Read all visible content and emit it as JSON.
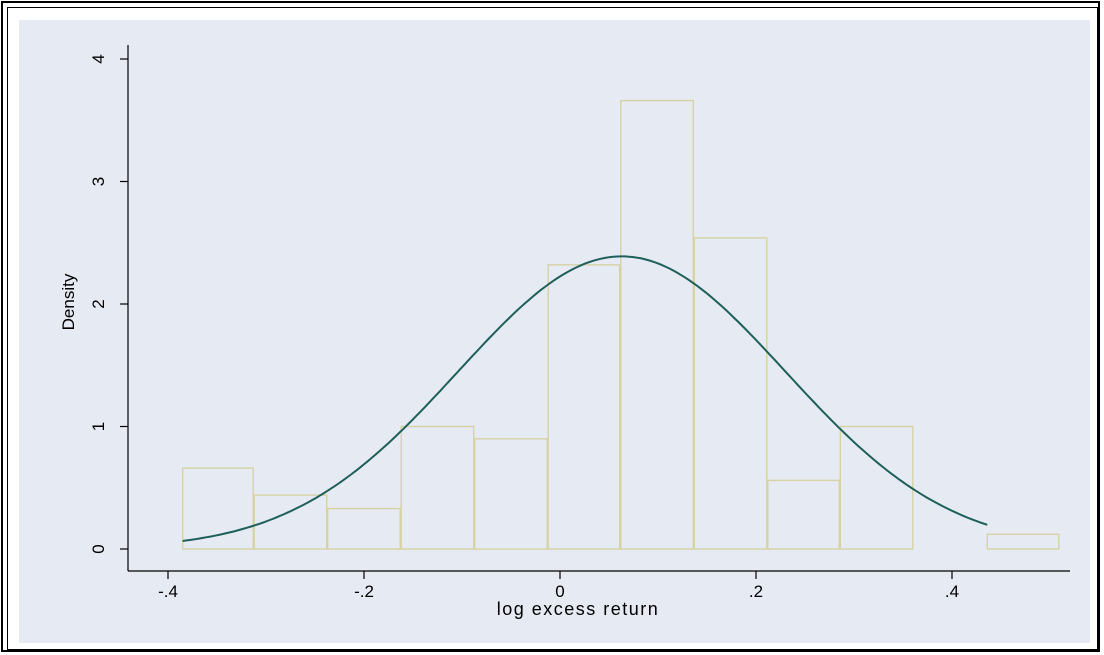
{
  "chart_data": {
    "type": "bar",
    "subtype": "histogram-with-density-curve",
    "xlabel": "log excess return",
    "ylabel": "Density",
    "xlim": [
      -0.4,
      0.5
    ],
    "ylim": [
      0,
      4
    ],
    "x_ticks": [
      {
        "value": -0.4,
        "label": "-.4"
      },
      {
        "value": -0.2,
        "label": "-.2"
      },
      {
        "value": 0,
        "label": "0"
      },
      {
        "value": 0.2,
        "label": ".2"
      },
      {
        "value": 0.4,
        "label": ".4"
      }
    ],
    "y_ticks": [
      {
        "value": 0,
        "label": "0"
      },
      {
        "value": 1,
        "label": "1"
      },
      {
        "value": 2,
        "label": "2"
      },
      {
        "value": 3,
        "label": "3"
      },
      {
        "value": 4,
        "label": "4"
      }
    ],
    "grid": false,
    "bins": [
      {
        "x0": -0.385,
        "x1": -0.312,
        "density": 0.66
      },
      {
        "x0": -0.312,
        "x1": -0.237,
        "density": 0.44
      },
      {
        "x0": -0.237,
        "x1": -0.162,
        "density": 0.33
      },
      {
        "x0": -0.162,
        "x1": -0.087,
        "density": 1.0
      },
      {
        "x0": -0.087,
        "x1": -0.012,
        "density": 0.9
      },
      {
        "x0": -0.012,
        "x1": 0.062,
        "density": 2.32
      },
      {
        "x0": 0.062,
        "x1": 0.137,
        "density": 3.66
      },
      {
        "x0": 0.137,
        "x1": 0.212,
        "density": 2.54
      },
      {
        "x0": 0.212,
        "x1": 0.286,
        "density": 0.56
      },
      {
        "x0": 0.286,
        "x1": 0.361,
        "density": 1.0
      },
      {
        "x0": 0.361,
        "x1": 0.436,
        "density": 0.0
      },
      {
        "x0": 0.436,
        "x1": 0.51,
        "density": 0.12
      }
    ],
    "density_curve": {
      "distribution": "normal",
      "mean": 0.063,
      "sd": 0.167,
      "x_range": [
        -0.385,
        0.436
      ]
    },
    "colors": {
      "background": "#e6eaf3",
      "plot_area": "#e6eaf3",
      "bar_outline": "#d6d2a4",
      "curve": "#1e5f5a",
      "frame": "#000000"
    }
  }
}
